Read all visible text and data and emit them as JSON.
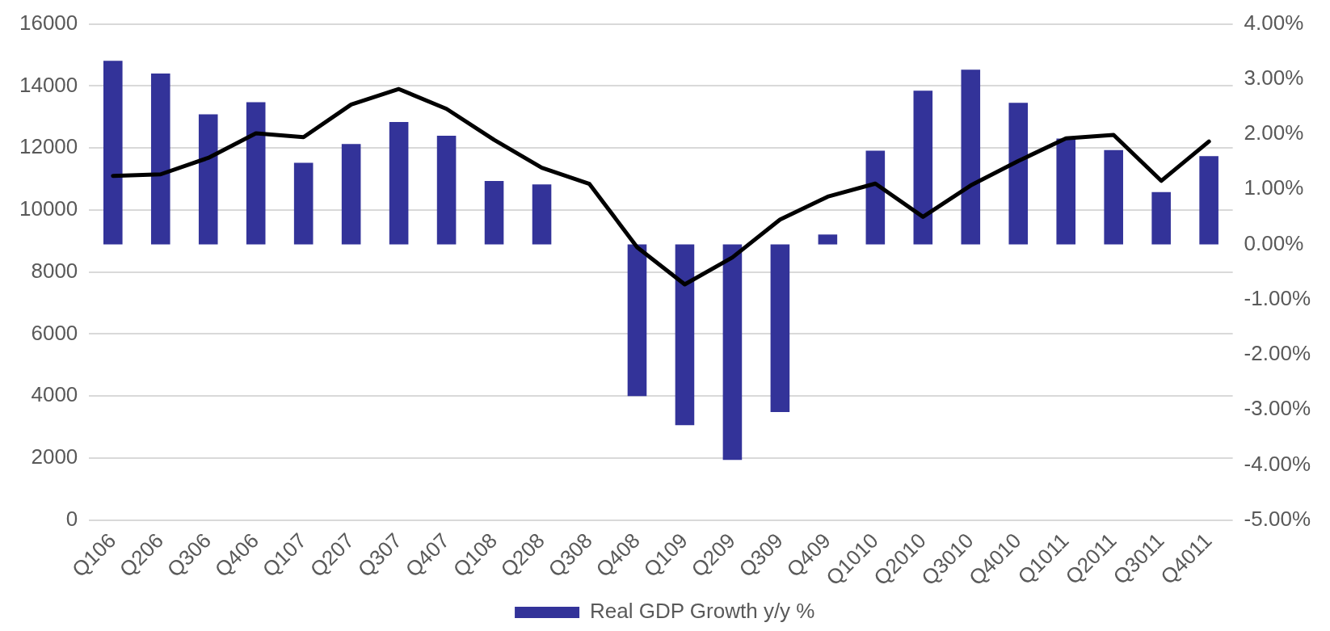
{
  "chart_data": {
    "type": "bar",
    "categories": [
      "Q106",
      "Q206",
      "Q306",
      "Q406",
      "Q107",
      "Q207",
      "Q307",
      "Q407",
      "Q108",
      "Q208",
      "Q308",
      "Q408",
      "Q109",
      "Q209",
      "Q309",
      "Q409",
      "Q1010",
      "Q2010",
      "Q3010",
      "Q4010",
      "Q1011",
      "Q2011",
      "Q3011",
      "Q4011"
    ],
    "series": [
      {
        "name": "Real GDP Growth y/y %",
        "axis": "y2",
        "color": "#333399",
        "values": [
          3.33,
          3.1,
          2.36,
          2.58,
          1.48,
          1.82,
          2.22,
          1.97,
          1.15,
          1.09,
          0.0,
          -2.75,
          -3.28,
          -3.91,
          -3.04,
          0.18,
          1.7,
          2.79,
          3.17,
          2.57,
          1.92,
          1.71,
          0.95,
          1.6
        ]
      },
      {
        "type": "line",
        "axis": "y",
        "color": "#000000",
        "values": [
          11100,
          11150,
          11680,
          12470,
          12350,
          13400,
          13900,
          13260,
          12260,
          11360,
          10840,
          8800,
          7600,
          8470,
          9690,
          10430,
          10850,
          9780,
          10790,
          11580,
          12310,
          12420,
          10940,
          12210
        ]
      }
    ],
    "ylim": [
      0,
      16000
    ],
    "yticks": [
      0,
      2000,
      4000,
      6000,
      8000,
      10000,
      12000,
      14000,
      16000
    ],
    "y2lim": [
      -5,
      4
    ],
    "y2ticks": [
      {
        "value": -5,
        "label": "-5.00%"
      },
      {
        "value": -4,
        "label": "-4.00%"
      },
      {
        "value": -3,
        "label": "-3.00%"
      },
      {
        "value": -2,
        "label": "-2.00%"
      },
      {
        "value": -1,
        "label": "-1.00%"
      },
      {
        "value": 0,
        "label": "0.00%"
      },
      {
        "value": 1,
        "label": "1.00%"
      },
      {
        "value": 2,
        "label": "2.00%"
      },
      {
        "value": 3,
        "label": "3.00%"
      },
      {
        "value": 4,
        "label": "4.00%"
      }
    ],
    "grid": "y",
    "legend": "bottom",
    "marker": "none",
    "line_style": "solid"
  }
}
